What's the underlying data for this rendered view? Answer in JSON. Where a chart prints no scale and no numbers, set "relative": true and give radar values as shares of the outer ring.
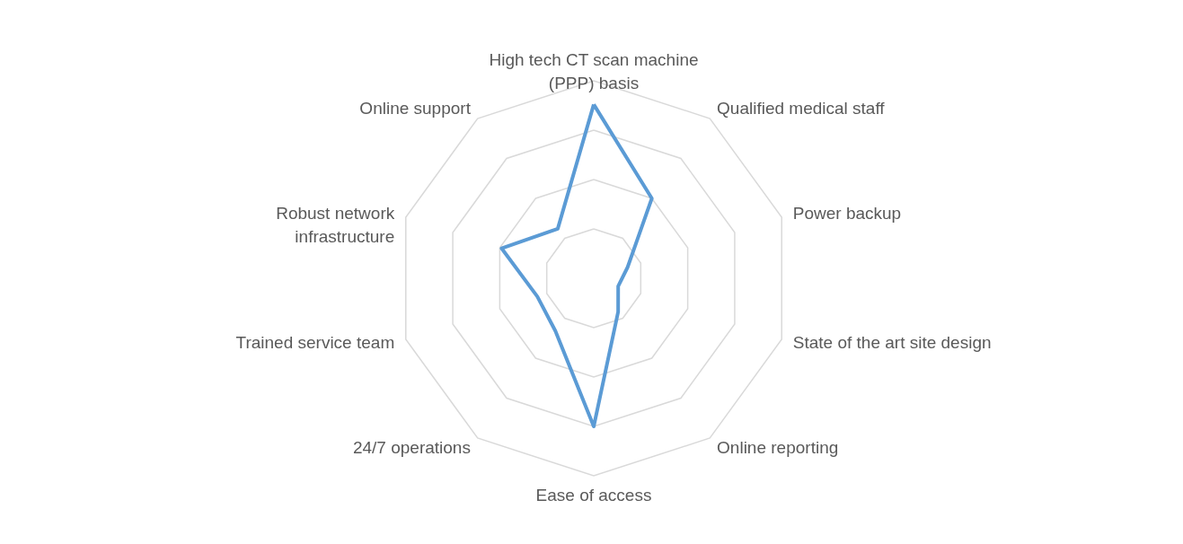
{
  "chart_data": {
    "type": "radar",
    "relative": true,
    "grid": true,
    "categories": [
      "High tech CT scan machine (PPP) basis",
      "Qualified medical staff",
      "Power backup",
      "State of the art site design",
      "Online reporting",
      "Ease of access",
      "24/7 operations",
      "Trained service team",
      "Robust network infrastructure",
      "Online support"
    ],
    "series": [
      {
        "color": "#5b9bd5",
        "values": [
          0.88,
          0.5,
          0.18,
          0.13,
          0.21,
          0.75,
          0.33,
          0.3,
          0.49,
          0.31
        ]
      }
    ]
  }
}
